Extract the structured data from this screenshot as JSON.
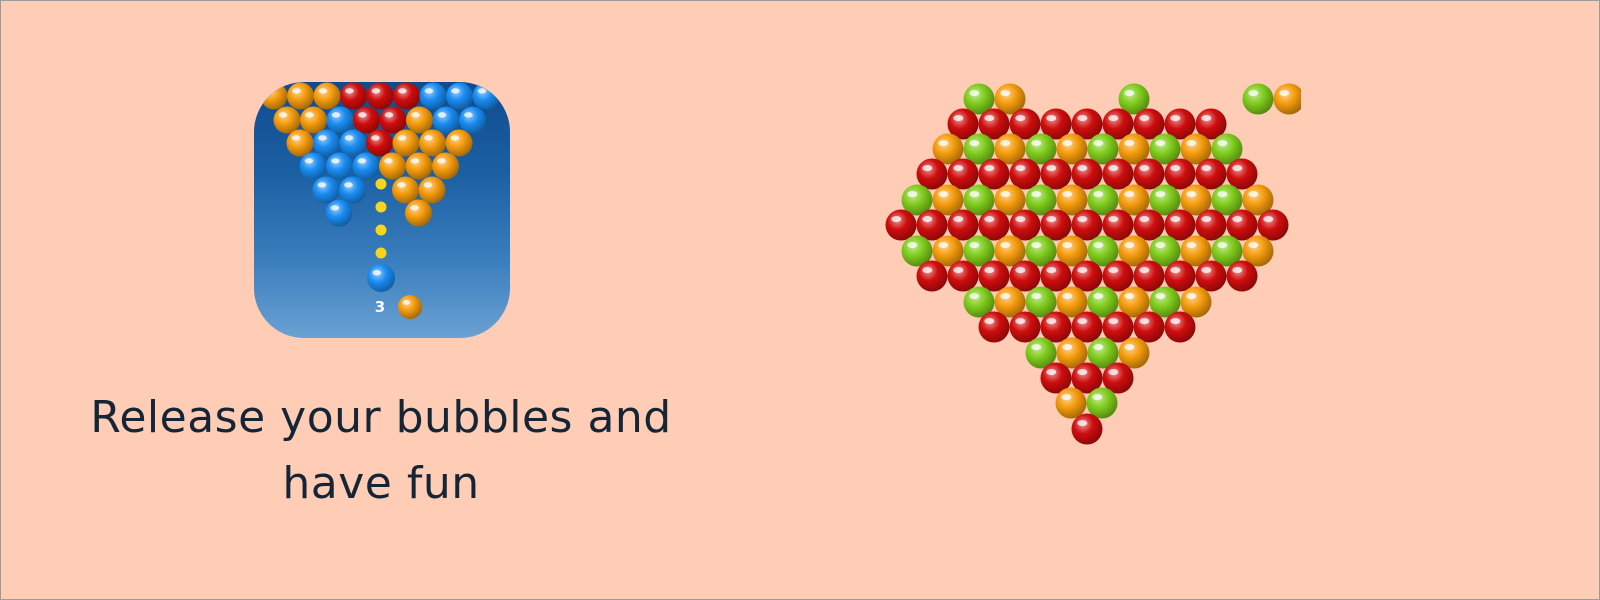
{
  "background": "#ffccb5",
  "app_icon": {
    "icon": "bubble-shooter-app-icon",
    "shots_remaining": "3",
    "colors": {
      "red": "#cf0d0d",
      "orange": "#f59b0c",
      "blue": "#1a8cf2",
      "green": "#7fcc1c",
      "aim_dots": "#f7d51a"
    }
  },
  "tagline": "Release your bubbles and have fun",
  "heart": {
    "icon": "bubble-heart-illustration",
    "colors": {
      "red": "#cf0d0d",
      "orange": "#f59b0c",
      "green": "#7fcc1c"
    }
  }
}
